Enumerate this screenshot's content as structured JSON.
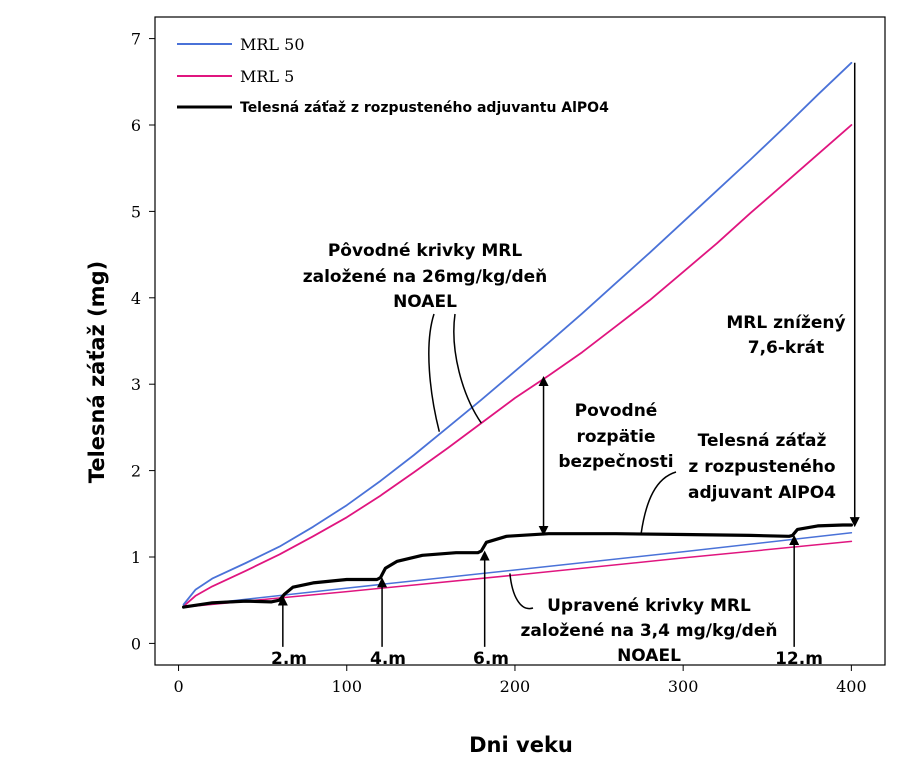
{
  "chart_data": {
    "type": "line",
    "title": "",
    "xlabel": "Dni veku",
    "ylabel": "Telesná záťaž (mg)",
    "xlim": [
      -14,
      420
    ],
    "ylim": [
      -0.25,
      7.25
    ],
    "xticks": [
      0,
      100,
      200,
      300,
      400
    ],
    "yticks": [
      0,
      1,
      2,
      3,
      4,
      5,
      6,
      7
    ],
    "grid": false,
    "legend_position": "top-left",
    "colors": {
      "mrl50": "#4a72d8",
      "mrl5": "#e0157f",
      "body_burden": "#000000",
      "axis": "#000000"
    },
    "series": [
      {
        "name": "MRL 50",
        "key": "mrl50",
        "x": [
          3,
          10,
          20,
          40,
          60,
          80,
          100,
          120,
          140,
          160,
          180,
          200,
          220,
          240,
          260,
          280,
          300,
          320,
          340,
          360,
          380,
          400
        ],
        "y": [
          0.45,
          0.62,
          0.75,
          0.93,
          1.12,
          1.35,
          1.6,
          1.88,
          2.18,
          2.5,
          2.82,
          3.15,
          3.48,
          3.82,
          4.17,
          4.52,
          4.88,
          5.24,
          5.6,
          5.97,
          6.35,
          6.72
        ]
      },
      {
        "name": "MRL 5",
        "key": "mrl5",
        "x": [
          3,
          10,
          20,
          40,
          60,
          80,
          100,
          120,
          140,
          160,
          180,
          200,
          220,
          240,
          260,
          280,
          300,
          320,
          340,
          360,
          380,
          400
        ],
        "y": [
          0.43,
          0.55,
          0.66,
          0.84,
          1.03,
          1.24,
          1.46,
          1.71,
          1.98,
          2.26,
          2.55,
          2.84,
          3.1,
          3.37,
          3.67,
          3.97,
          4.3,
          4.63,
          4.98,
          5.32,
          5.66,
          6.0
        ]
      },
      {
        "name": "Telesná záťaž z rozpusteného adjuvantu AlPO4",
        "key": "body_burden",
        "x": [
          3,
          20,
          40,
          55,
          60,
          63,
          68,
          80,
          100,
          118,
          120,
          123,
          130,
          145,
          165,
          178,
          180,
          183,
          195,
          220,
          260,
          300,
          340,
          363,
          365,
          368,
          380,
          395,
          400
        ],
        "y": [
          0.42,
          0.47,
          0.49,
          0.48,
          0.5,
          0.57,
          0.65,
          0.7,
          0.74,
          0.74,
          0.76,
          0.87,
          0.95,
          1.02,
          1.05,
          1.05,
          1.07,
          1.17,
          1.24,
          1.27,
          1.27,
          1.26,
          1.25,
          1.24,
          1.25,
          1.32,
          1.36,
          1.37,
          1.37
        ]
      },
      {
        "name": "Upravené krivky MRL 50",
        "key": "adj_mrl50",
        "x": [
          3,
          100,
          200,
          300,
          400
        ],
        "y": [
          0.43,
          0.64,
          0.85,
          1.06,
          1.28
        ]
      },
      {
        "name": "Upravené krivky MRL 5",
        "key": "adj_mrl5",
        "x": [
          3,
          100,
          200,
          300,
          400
        ],
        "y": [
          0.42,
          0.6,
          0.79,
          0.99,
          1.18
        ]
      }
    ],
    "annotations": {
      "original_curves": {
        "lines": [
          "Pôvodné krivky MRL",
          "založené na 26mg/kg/deň",
          "NOAEL"
        ],
        "pointer_targets": [
          {
            "x": 155,
            "y": 2.45
          },
          {
            "x": 180,
            "y": 2.55
          }
        ]
      },
      "mrl_reduced": {
        "lines": [
          "MRL znížený",
          "7,6-krát"
        ],
        "arrow_x": 402,
        "arrow_y_from": 6.72,
        "arrow_y_to": 1.38
      },
      "original_margin": {
        "lines": [
          "Povodné",
          "rozpätie",
          "bezpečnosti"
        ],
        "arrow_x": 217,
        "arrow_y_from": 3.06,
        "arrow_y_to": 1.28
      },
      "body_burden_label": {
        "lines": [
          "Telesná záťaž",
          "z rozpusteného",
          "adjuvant AlPO4"
        ],
        "pointer_target": {
          "x": 275,
          "y": 1.27
        }
      },
      "adjusted_curves": {
        "lines": [
          "Upravené krivky MRL",
          "založené na 3,4 mg/kg/deň",
          "NOAEL"
        ],
        "pointer_target": {
          "x": 197,
          "y": 0.81
        }
      },
      "month_markers": [
        {
          "label": "2.m",
          "x": 62,
          "y_top": 0.52
        },
        {
          "label": "4.m",
          "x": 121,
          "y_top": 0.73
        },
        {
          "label": "6.m",
          "x": 182,
          "y_top": 1.04
        },
        {
          "label": "12.m",
          "x": 366,
          "y_top": 1.22
        }
      ]
    }
  }
}
